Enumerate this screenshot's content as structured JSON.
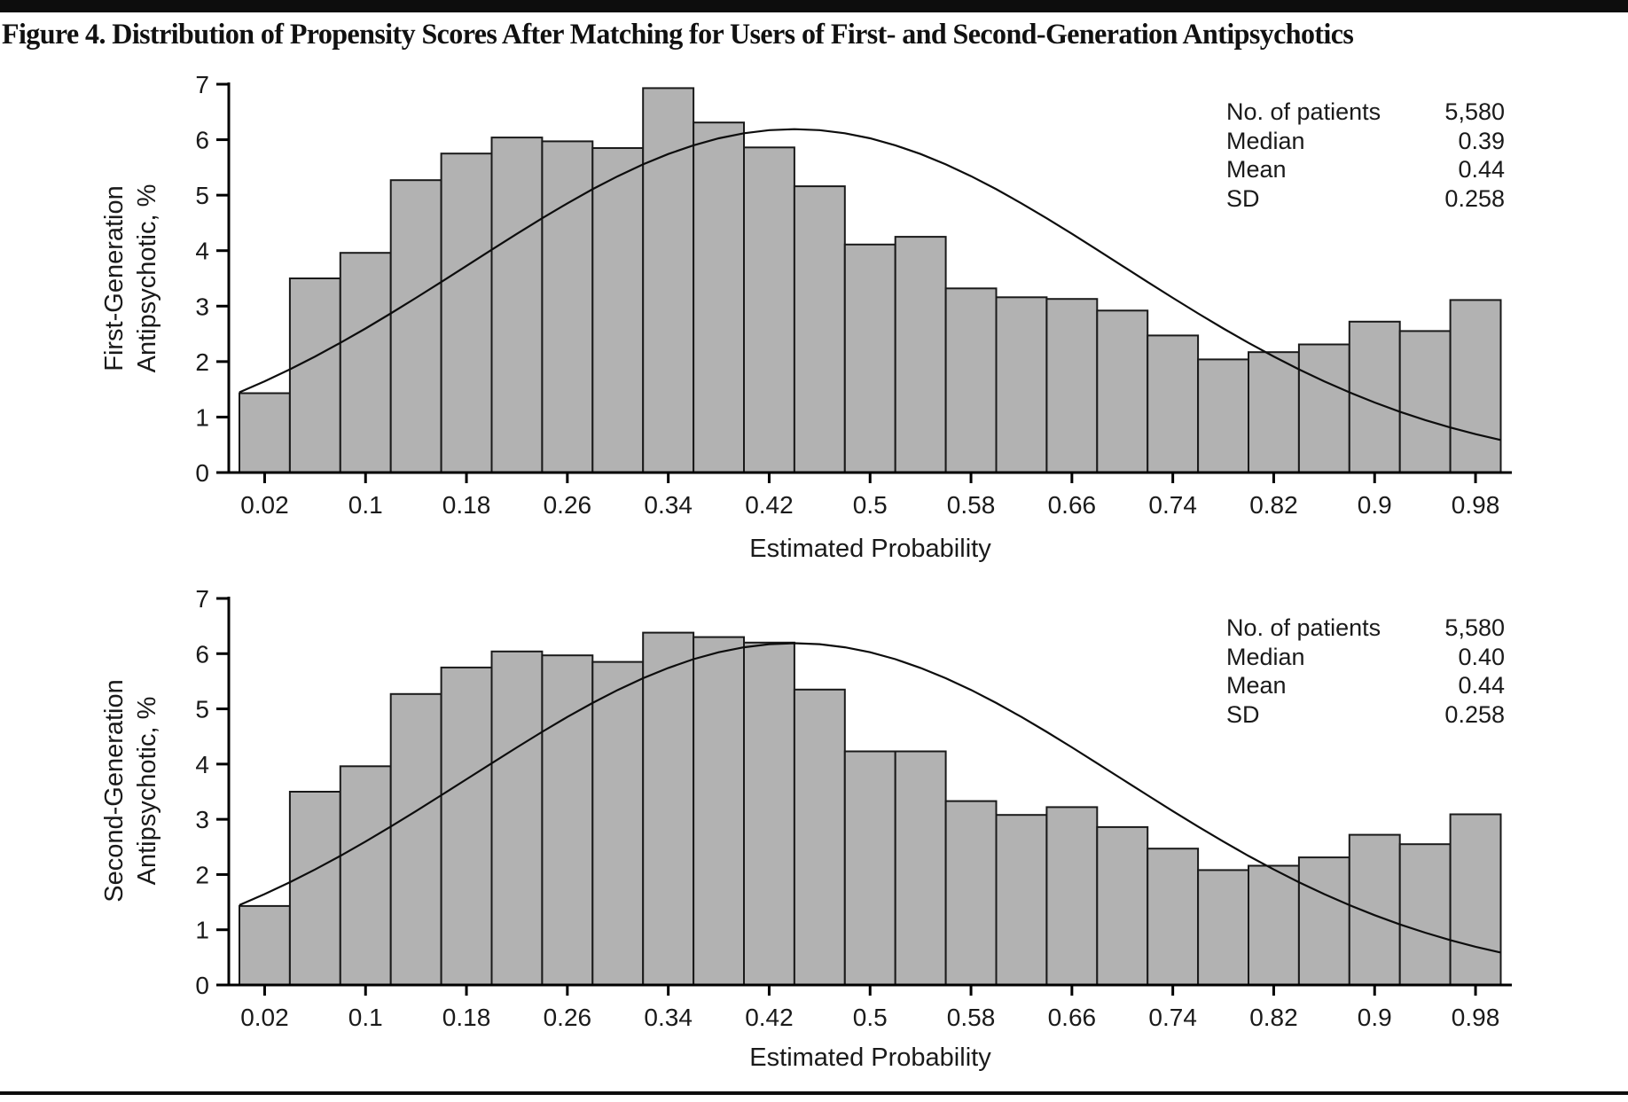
{
  "figure": {
    "title": "Figure 4. Distribution of Propensity Scores After Matching for Users of First- and Second-Generation Antipsychotics"
  },
  "colors": {
    "bar_fill": "#b2b2b2",
    "bar_stroke": "#1a1a1a",
    "axis": "#000000",
    "curve": "#0d0d0d",
    "rule": "#0d0d0d"
  },
  "chart_data": [
    {
      "type": "bar",
      "panel": "first-generation-antipsychotic",
      "ylabel_lines": [
        "First-Generation",
        "Antipsychotic, %"
      ],
      "xlabel": "Estimated Probability",
      "ylim": [
        0,
        7
      ],
      "yticks": [
        0,
        1,
        2,
        3,
        4,
        5,
        6,
        7
      ],
      "xtick_labels": [
        "0.02",
        "0.1",
        "0.18",
        "0.26",
        "0.34",
        "0.42",
        "0.5",
        "0.58",
        "0.66",
        "0.74",
        "0.82",
        "0.9",
        "0.98"
      ],
      "bin_width": 0.04,
      "categories": [
        0.02,
        0.06,
        0.1,
        0.14,
        0.18,
        0.22,
        0.26,
        0.3,
        0.34,
        0.38,
        0.42,
        0.46,
        0.5,
        0.54,
        0.58,
        0.62,
        0.66,
        0.7,
        0.74,
        0.78,
        0.82,
        0.86,
        0.9,
        0.94,
        0.98
      ],
      "values": [
        1.43,
        3.5,
        3.96,
        5.27,
        5.75,
        6.04,
        5.97,
        5.85,
        6.93,
        6.31,
        5.86,
        5.16,
        4.11,
        4.25,
        3.32,
        3.16,
        3.13,
        2.92,
        2.47,
        2.04,
        2.17,
        2.31,
        2.72,
        2.55,
        3.11
      ],
      "curve": {
        "shape": "normal",
        "mean": 0.44,
        "sd": 0.258,
        "peak": 6.19,
        "x_range": [
          0,
          1
        ]
      },
      "grid": "off",
      "legend": "none",
      "stats": {
        "rows": [
          [
            "No. of patients",
            "5,580"
          ],
          [
            "Median",
            "0.39"
          ],
          [
            "Mean",
            "0.44"
          ],
          [
            "SD",
            "0.258"
          ]
        ]
      }
    },
    {
      "type": "bar",
      "panel": "second-generation-antipsychotic",
      "ylabel_lines": [
        "Second-Generation",
        "Antipsychotic, %"
      ],
      "xlabel": "Estimated Probability",
      "ylim": [
        0,
        7
      ],
      "yticks": [
        0,
        1,
        2,
        3,
        4,
        5,
        6,
        7
      ],
      "xtick_labels": [
        "0.02",
        "0.1",
        "0.18",
        "0.26",
        "0.34",
        "0.42",
        "0.5",
        "0.58",
        "0.66",
        "0.74",
        "0.82",
        "0.9",
        "0.98"
      ],
      "bin_width": 0.04,
      "categories": [
        0.02,
        0.06,
        0.1,
        0.14,
        0.18,
        0.22,
        0.26,
        0.3,
        0.34,
        0.38,
        0.42,
        0.46,
        0.5,
        0.54,
        0.58,
        0.62,
        0.66,
        0.7,
        0.74,
        0.78,
        0.82,
        0.86,
        0.9,
        0.94,
        0.98
      ],
      "values": [
        1.43,
        3.5,
        3.96,
        5.27,
        5.75,
        6.04,
        5.97,
        5.85,
        6.38,
        6.3,
        6.2,
        5.35,
        4.23,
        4.23,
        3.33,
        3.08,
        3.22,
        2.86,
        2.47,
        2.08,
        2.16,
        2.31,
        2.72,
        2.55,
        3.09
      ],
      "curve": {
        "shape": "normal",
        "mean": 0.44,
        "sd": 0.258,
        "peak": 6.19,
        "x_range": [
          0,
          1
        ]
      },
      "grid": "off",
      "legend": "none",
      "stats": {
        "rows": [
          [
            "No. of patients",
            "5,580"
          ],
          [
            "Median",
            "0.40"
          ],
          [
            "Mean",
            "0.44"
          ],
          [
            "SD",
            "0.258"
          ]
        ]
      }
    }
  ]
}
